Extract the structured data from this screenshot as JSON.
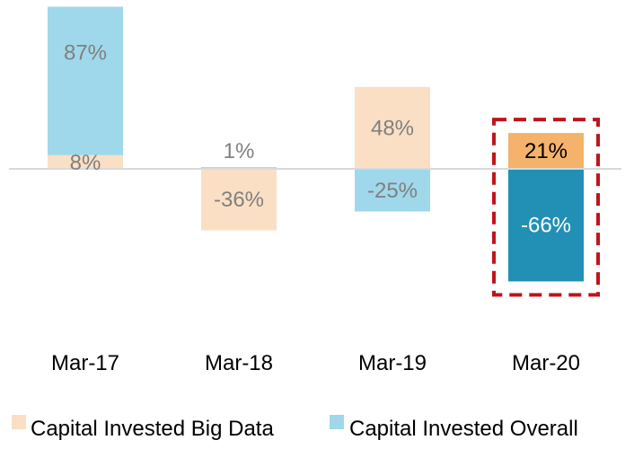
{
  "chart_data": {
    "type": "bar",
    "categories": [
      "Mar-17",
      "Mar-18",
      "Mar-19",
      "Mar-20"
    ],
    "series": [
      {
        "name": "Capital Invested Big Data",
        "values": [
          8,
          -36,
          48,
          21
        ],
        "labels": [
          "8%",
          "-36%",
          "48%",
          "21%"
        ],
        "color": "#fbdfc4",
        "highlight_color": "#f4b26b"
      },
      {
        "name": "Capital Invested Overall",
        "values": [
          87,
          1,
          -25,
          -66
        ],
        "labels": [
          "87%",
          "1%",
          "-25%",
          "-66%"
        ],
        "color": "#9fd8ea",
        "highlight_color": "#2290b5"
      }
    ],
    "stacked": true,
    "highlight_category": "Mar-20",
    "highlight_box_color": "#c0141c",
    "label_color": "#808080",
    "highlight_label_colors": [
      "#000000",
      "#ffffff"
    ],
    "ylim": [
      -90,
      95
    ],
    "grid": false,
    "legend_position": "bottom"
  }
}
